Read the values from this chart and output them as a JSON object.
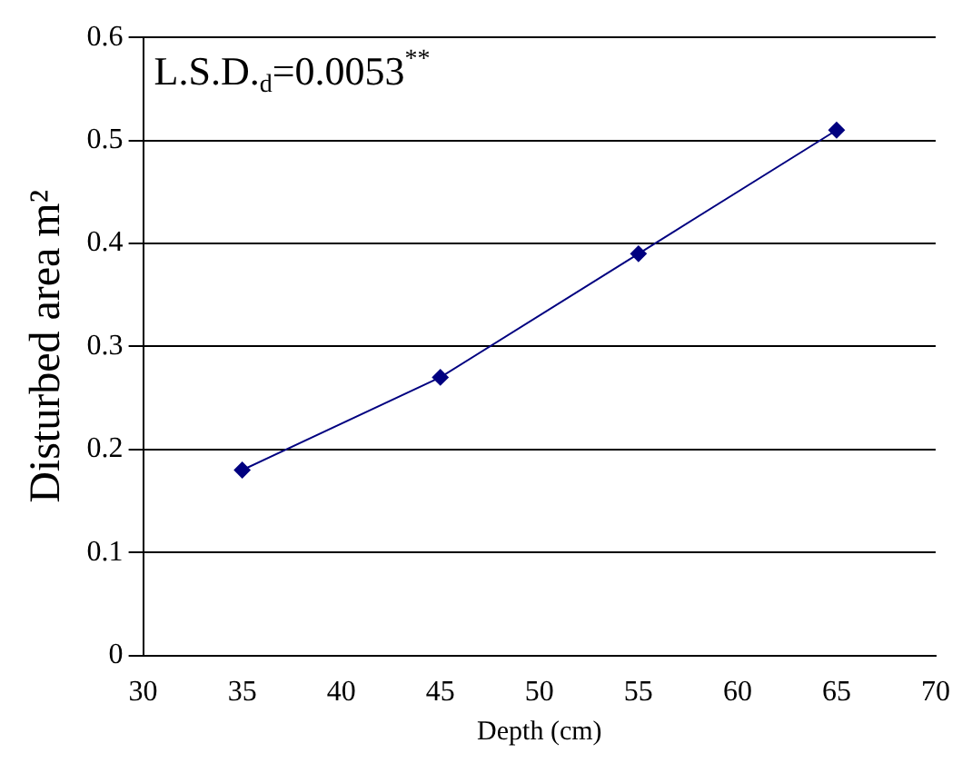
{
  "chart_data": {
    "type": "line",
    "xlabel": "Depth (cm)",
    "ylabel": "Disturbed area m²",
    "annotations": [
      "L.S.D.$_{d}$=0.0053$^{**}$"
    ],
    "x": [
      35,
      45,
      55,
      65
    ],
    "series": [
      {
        "color": "#000080",
        "values": [
          0.18,
          0.27,
          0.39,
          0.51
        ]
      }
    ],
    "xlim": [
      30,
      70
    ],
    "xticks": [
      30,
      35,
      40,
      45,
      50,
      55,
      60,
      65,
      70
    ],
    "ylim": [
      0,
      0.6
    ],
    "yticks": [
      0,
      0.1,
      0.2,
      0.3,
      0.4,
      0.5,
      0.6
    ],
    "grid": "y",
    "legend": false,
    "marker": "diamond",
    "line_style": "solid"
  }
}
